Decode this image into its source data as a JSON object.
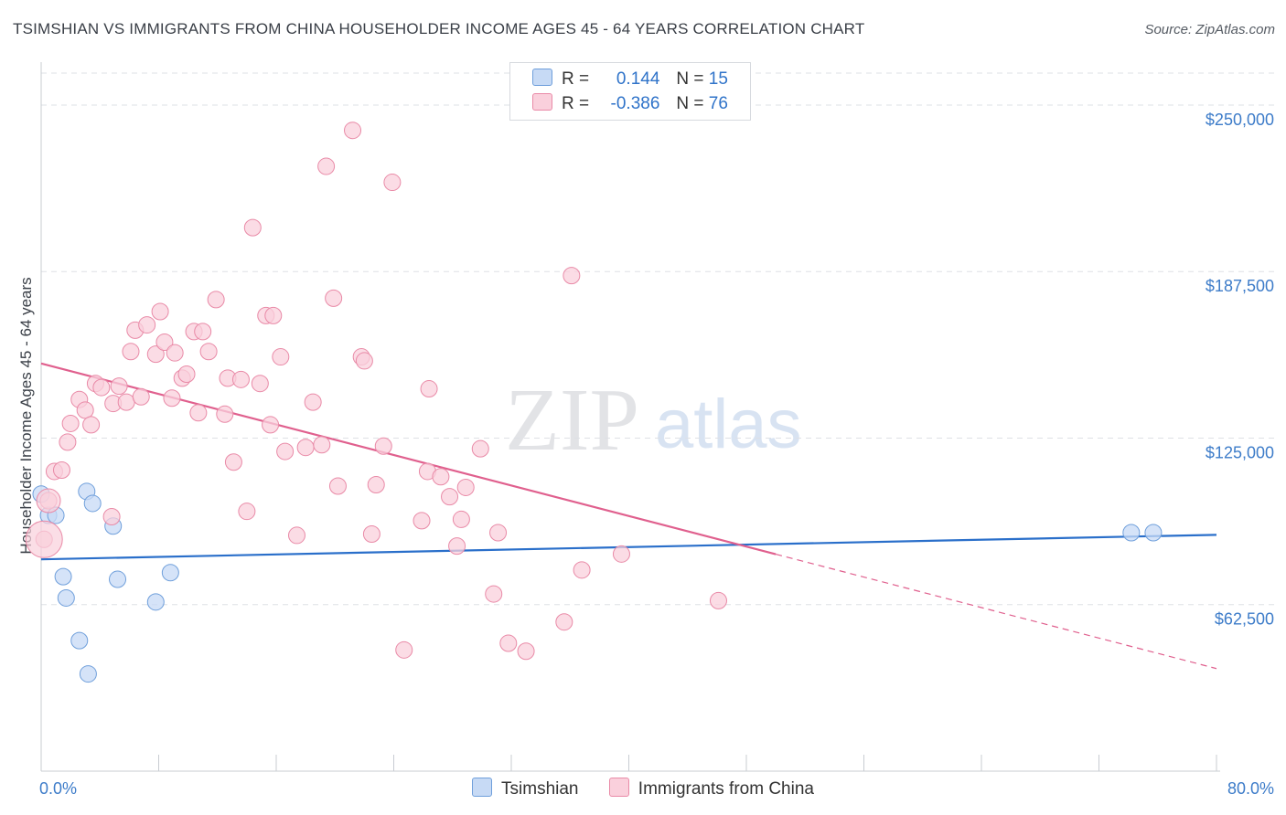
{
  "title": "TSIMSHIAN VS IMMIGRANTS FROM CHINA HOUSEHOLDER INCOME AGES 45 - 64 YEARS CORRELATION CHART",
  "source": "Source: ZipAtlas.com",
  "watermark": {
    "zip": "ZIP",
    "atlas": "atlas"
  },
  "legend": {
    "series": [
      {
        "r_label": "R =",
        "r_value": "0.144",
        "n_label": "N =",
        "n_value": "15"
      },
      {
        "r_label": "R =",
        "r_value": "-0.386",
        "n_label": "N =",
        "n_value": "76"
      }
    ]
  },
  "colors": {
    "tsimshian_fill": "#c7daf5",
    "tsimshian_stroke": "#6f9fdb",
    "tsimshian_line": "#2a6fca",
    "china_fill": "#fad0dc",
    "china_stroke": "#e98aa7",
    "china_line": "#e0608e",
    "tick_text": "#3d7cc9",
    "grid": "#dde0e5"
  },
  "chart_data": {
    "type": "scatter",
    "title": "TSIMSHIAN VS IMMIGRANTS FROM CHINA HOUSEHOLDER INCOME AGES 45 - 64 YEARS CORRELATION CHART",
    "xlabel": "",
    "ylabel": "Householder Income Ages 45 - 64 years",
    "xlim": [
      0,
      80
    ],
    "ylim": [
      0,
      262000
    ],
    "x_tick_labels": [
      "0.0%",
      "80.0%"
    ],
    "y_ticks": [
      62500,
      125000,
      187500,
      250000
    ],
    "y_tick_labels": [
      "$62,500",
      "$125,000",
      "$187,500",
      "$250,000"
    ],
    "grid": true,
    "legend_position": "bottom",
    "series": [
      {
        "name": "Tsimshian",
        "r": 0.144,
        "n": 15,
        "points": [
          [
            0.0,
            104000
          ],
          [
            0.5,
            96000
          ],
          [
            1.0,
            96000
          ],
          [
            3.1,
            105000
          ],
          [
            3.5,
            100500
          ],
          [
            4.9,
            92000
          ],
          [
            1.5,
            73000
          ],
          [
            1.7,
            65000
          ],
          [
            5.2,
            72000
          ],
          [
            8.8,
            74500
          ],
          [
            7.8,
            63500
          ],
          [
            2.6,
            49000
          ],
          [
            3.2,
            36500
          ],
          [
            74.2,
            89500
          ],
          [
            75.7,
            89500
          ]
        ],
        "trend": {
          "x": [
            0,
            80
          ],
          "y": [
            79500,
            88700
          ]
        }
      },
      {
        "name": "Immigrants from China",
        "r": -0.386,
        "n": 76,
        "points": [
          [
            0.2,
            87000
          ],
          [
            0.5,
            101500
          ],
          [
            0.9,
            112500
          ],
          [
            1.4,
            113000
          ],
          [
            1.8,
            123500
          ],
          [
            2.0,
            130500
          ],
          [
            2.6,
            139500
          ],
          [
            3.0,
            135500
          ],
          [
            3.4,
            130000
          ],
          [
            3.7,
            145500
          ],
          [
            4.1,
            144000
          ],
          [
            4.8,
            95500
          ],
          [
            4.9,
            138000
          ],
          [
            5.3,
            144500
          ],
          [
            5.8,
            138500
          ],
          [
            6.1,
            157500
          ],
          [
            6.4,
            165500
          ],
          [
            6.8,
            140500
          ],
          [
            7.2,
            167500
          ],
          [
            7.8,
            156500
          ],
          [
            8.1,
            172500
          ],
          [
            8.4,
            161000
          ],
          [
            8.9,
            140000
          ],
          [
            9.1,
            157000
          ],
          [
            9.6,
            147500
          ],
          [
            9.9,
            149000
          ],
          [
            10.4,
            165000
          ],
          [
            10.7,
            134500
          ],
          [
            11.0,
            165000
          ],
          [
            11.4,
            157500
          ],
          [
            11.9,
            177000
          ],
          [
            12.5,
            134000
          ],
          [
            12.7,
            147500
          ],
          [
            13.1,
            116000
          ],
          [
            13.6,
            147000
          ],
          [
            14.0,
            97500
          ],
          [
            14.4,
            204000
          ],
          [
            14.9,
            145500
          ],
          [
            15.3,
            171000
          ],
          [
            15.6,
            130000
          ],
          [
            15.8,
            171000
          ],
          [
            16.3,
            155500
          ],
          [
            16.6,
            120000
          ],
          [
            17.4,
            88500
          ],
          [
            18.0,
            121500
          ],
          [
            18.5,
            138500
          ],
          [
            19.1,
            122500
          ],
          [
            19.4,
            227000
          ],
          [
            19.9,
            177500
          ],
          [
            20.2,
            107000
          ],
          [
            21.2,
            240500
          ],
          [
            21.8,
            155500
          ],
          [
            22.0,
            154000
          ],
          [
            22.5,
            89000
          ],
          [
            22.8,
            107500
          ],
          [
            23.3,
            122000
          ],
          [
            23.9,
            221000
          ],
          [
            24.7,
            45500
          ],
          [
            25.9,
            94000
          ],
          [
            26.3,
            112500
          ],
          [
            26.4,
            143500
          ],
          [
            27.2,
            110500
          ],
          [
            27.8,
            103000
          ],
          [
            28.3,
            84500
          ],
          [
            28.6,
            94500
          ],
          [
            28.9,
            106500
          ],
          [
            29.9,
            121000
          ],
          [
            30.8,
            66500
          ],
          [
            31.1,
            89500
          ],
          [
            31.8,
            48000
          ],
          [
            33.0,
            45000
          ],
          [
            35.6,
            56000
          ],
          [
            36.1,
            186000
          ],
          [
            36.8,
            75500
          ],
          [
            39.5,
            81500
          ],
          [
            46.1,
            64000
          ]
        ],
        "trend": {
          "x": [
            0,
            80
          ],
          "y": [
            153000,
            38500
          ],
          "solid_until_x": 50
        }
      }
    ]
  }
}
